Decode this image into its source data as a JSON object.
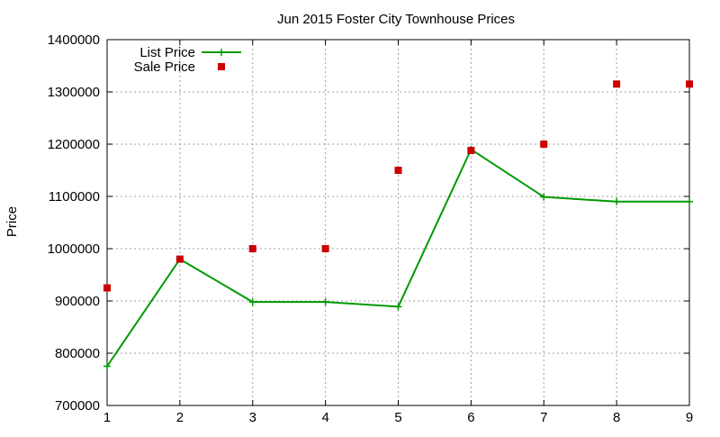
{
  "chart_data": {
    "type": "line",
    "title": "Jun 2015 Foster City Townhouse Prices",
    "xlabel": "",
    "ylabel": "Price",
    "xlim": [
      1,
      9
    ],
    "ylim": [
      700000,
      1400000
    ],
    "x_ticks": [
      1,
      2,
      3,
      4,
      5,
      6,
      7,
      8,
      9
    ],
    "y_ticks": [
      700000,
      800000,
      900000,
      1000000,
      1100000,
      1200000,
      1300000,
      1400000
    ],
    "grid": true,
    "legend_position": "top-left",
    "series": [
      {
        "name": "List Price",
        "style": "line-with-plus-markers",
        "color": "#009900",
        "x": [
          1,
          2,
          3,
          4,
          5,
          6,
          7,
          8,
          9
        ],
        "values": [
          775000,
          980000,
          898000,
          898000,
          889000,
          1190000,
          1099000,
          1090000,
          1090000
        ]
      },
      {
        "name": "Sale Price",
        "style": "square-markers",
        "color": "#cc0000",
        "x": [
          1,
          2,
          3,
          4,
          5,
          6,
          7,
          8,
          9
        ],
        "values": [
          925000,
          980000,
          1000000,
          1000000,
          1150000,
          1188000,
          1200000,
          1315000,
          1315000
        ]
      }
    ]
  }
}
